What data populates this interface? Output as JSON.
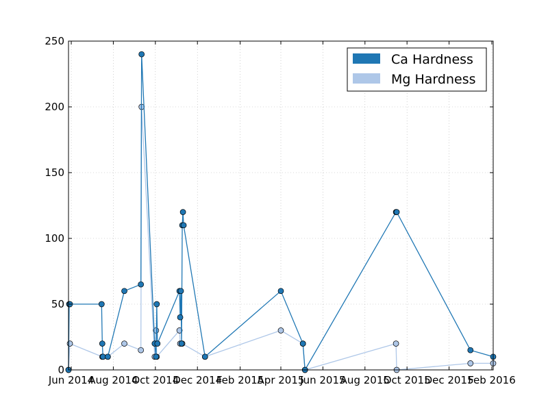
{
  "chart_data": {
    "type": "line",
    "title": "",
    "xlabel": "",
    "ylabel": "",
    "x_axis": "date",
    "xlim": [
      "2014-05-28",
      "2016-02-03"
    ],
    "ylim": [
      0,
      250
    ],
    "y_ticks": [
      0,
      50,
      100,
      150,
      200,
      250
    ],
    "x_ticks": [
      {
        "date": "2014-06-01",
        "label": "Jun 2014"
      },
      {
        "date": "2014-08-01",
        "label": "Aug 2014"
      },
      {
        "date": "2014-10-01",
        "label": "Oct 2014"
      },
      {
        "date": "2014-12-01",
        "label": "Dec 2014"
      },
      {
        "date": "2015-02-01",
        "label": "Feb 2015"
      },
      {
        "date": "2015-04-01",
        "label": "Apr 2015"
      },
      {
        "date": "2015-06-01",
        "label": "Jun 2015"
      },
      {
        "date": "2015-08-01",
        "label": "Aug 2015"
      },
      {
        "date": "2015-10-01",
        "label": "Oct 2015"
      },
      {
        "date": "2015-12-01",
        "label": "Dec 2015"
      },
      {
        "date": "2016-02-01",
        "label": "Feb 2016"
      }
    ],
    "grid": true,
    "legend_position": "top-right",
    "series": [
      {
        "name": "Ca Hardness",
        "color": "#1f77b4",
        "points": [
          {
            "x": "2014-05-28",
            "y": 0
          },
          {
            "x": "2014-05-29",
            "y": 50
          },
          {
            "x": "2014-05-30",
            "y": 50
          },
          {
            "x": "2014-07-15",
            "y": 50
          },
          {
            "x": "2014-07-16",
            "y": 20
          },
          {
            "x": "2014-07-17",
            "y": 10
          },
          {
            "x": "2014-07-24",
            "y": 10
          },
          {
            "x": "2014-08-17",
            "y": 60
          },
          {
            "x": "2014-09-10",
            "y": 65
          },
          {
            "x": "2014-09-11",
            "y": 240
          },
          {
            "x": "2014-09-30",
            "y": 20
          },
          {
            "x": "2014-10-02",
            "y": 10
          },
          {
            "x": "2014-10-03",
            "y": 50
          },
          {
            "x": "2014-10-04",
            "y": 20
          },
          {
            "x": "2014-11-05",
            "y": 60
          },
          {
            "x": "2014-11-06",
            "y": 40
          },
          {
            "x": "2014-11-07",
            "y": 60
          },
          {
            "x": "2014-11-08",
            "y": 20
          },
          {
            "x": "2014-11-09",
            "y": 110
          },
          {
            "x": "2014-11-10",
            "y": 120
          },
          {
            "x": "2014-11-11",
            "y": 110
          },
          {
            "x": "2014-12-12",
            "y": 10
          },
          {
            "x": "2015-04-01",
            "y": 60
          },
          {
            "x": "2015-05-03",
            "y": 20
          },
          {
            "x": "2015-05-06",
            "y": 0
          },
          {
            "x": "2015-09-15",
            "y": 120
          },
          {
            "x": "2015-09-16",
            "y": 120
          },
          {
            "x": "2016-01-01",
            "y": 15
          },
          {
            "x": "2016-02-03",
            "y": 10
          }
        ]
      },
      {
        "name": "Mg Hardness",
        "color": "#aec7e8",
        "points": [
          {
            "x": "2014-05-28",
            "y": 0
          },
          {
            "x": "2014-05-30",
            "y": 20
          },
          {
            "x": "2014-07-16",
            "y": 10
          },
          {
            "x": "2014-07-17",
            "y": 10
          },
          {
            "x": "2014-07-24",
            "y": 10
          },
          {
            "x": "2014-08-17",
            "y": 20
          },
          {
            "x": "2014-09-10",
            "y": 15
          },
          {
            "x": "2014-09-11",
            "y": 200
          },
          {
            "x": "2014-09-30",
            "y": 10
          },
          {
            "x": "2014-10-02",
            "y": 30
          },
          {
            "x": "2014-10-03",
            "y": 10
          },
          {
            "x": "2014-11-05",
            "y": 30
          },
          {
            "x": "2014-11-06",
            "y": 20
          },
          {
            "x": "2014-11-09",
            "y": 20
          },
          {
            "x": "2014-12-12",
            "y": 10
          },
          {
            "x": "2015-04-01",
            "y": 30
          },
          {
            "x": "2015-05-03",
            "y": 20
          },
          {
            "x": "2015-05-06",
            "y": 0
          },
          {
            "x": "2015-09-15",
            "y": 20
          },
          {
            "x": "2015-09-16",
            "y": 0
          },
          {
            "x": "2016-01-01",
            "y": 5
          },
          {
            "x": "2016-02-03",
            "y": 5
          }
        ]
      }
    ]
  }
}
